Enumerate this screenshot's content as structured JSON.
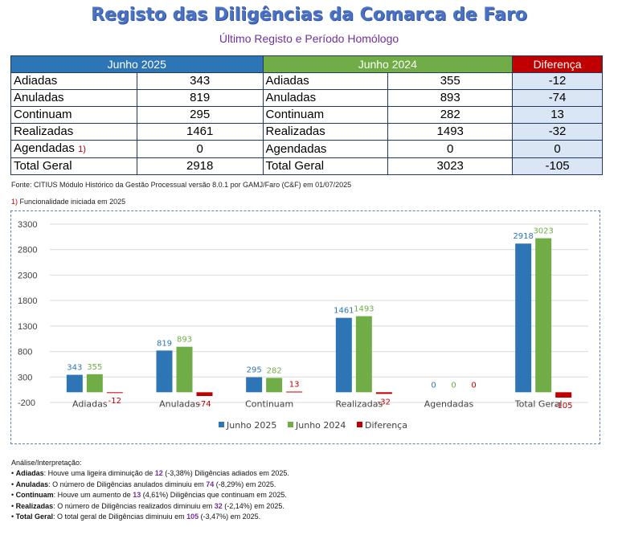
{
  "header": {
    "title": "Registo das Diligências da Comarca de Faro",
    "subtitle": "Último Registo e Período Homólogo"
  },
  "table": {
    "col_2025": "Junho 2025",
    "col_2024": "Junho 2024",
    "col_diff": "Diferença",
    "rows": [
      {
        "label": "Adiadas",
        "v2025": "343",
        "label2": "Adiadas",
        "v2024": "355",
        "diff": "-12"
      },
      {
        "label": "Anuladas",
        "v2025": "819",
        "label2": "Anuladas",
        "v2024": "893",
        "diff": "-74"
      },
      {
        "label": "Continuam",
        "v2025": "295",
        "label2": "Continuam",
        "v2024": "282",
        "diff": "13"
      },
      {
        "label": "Realizadas",
        "v2025": "1461",
        "label2": "Realizadas",
        "v2024": "1493",
        "diff": "-32"
      },
      {
        "label": "Agendadas",
        "sup": "1)",
        "v2025": "0",
        "label2": "Agendadas",
        "v2024": "0",
        "diff": "0"
      },
      {
        "label": "Total Geral",
        "v2025": "2918",
        "label2": "Total Geral",
        "v2024": "3023",
        "diff": "-105"
      }
    ]
  },
  "fonte": "Fonte: CITIUS Módulo Histórico da Gestão Processual versão 8.0.1 por GAMJ/Faro (C&F) em 01/07/2025",
  "note": {
    "marker": "1)",
    "text": " Funcionalidade iniciada em 2025"
  },
  "chart_data": {
    "type": "bar",
    "categories": [
      "Adiadas",
      "Anuladas",
      "Continuam",
      "Realizadas",
      "Agendadas",
      "Total Geral"
    ],
    "series": [
      {
        "name": "Junho 2025",
        "color": "#2e75b6",
        "values": [
          343,
          819,
          295,
          1461,
          0,
          2918
        ]
      },
      {
        "name": "Junho 2024",
        "color": "#70ad47",
        "values": [
          355,
          893,
          282,
          1493,
          0,
          3023
        ]
      },
      {
        "name": "Diferença",
        "color": "#c00000",
        "values": [
          -12,
          -74,
          13,
          -32,
          0,
          -105
        ]
      }
    ],
    "ylim": [
      -200,
      3300
    ],
    "yticks": [
      -200,
      300,
      800,
      1300,
      1800,
      2300,
      2800,
      3300
    ],
    "grid": true,
    "legend": "bottom"
  },
  "analysis": {
    "title": "Análise/Interpretação:",
    "items": [
      {
        "term": "Adiadas",
        "pre": ": Houve uma ligeira diminuição de ",
        "num": "12",
        "post": " (-3,38%) Diligências adiados em 2025."
      },
      {
        "term": "Anuladas",
        "pre": ": O número de Diligências anulados diminuiu em ",
        "num": "74",
        "post": " (-8,29%) em 2025."
      },
      {
        "term": "Continuam",
        "pre": ": Houve um aumento de ",
        "num": "13",
        "post": " (4,61%) Diligências que continuam em 2025."
      },
      {
        "term": "Realizadas",
        "pre": ": O número de Diligências realizados diminuiu em ",
        "num": "32",
        "post": " (-2,14%) em 2025."
      },
      {
        "term": "Total Geral",
        "pre": ": O total geral de Diligências diminuiu em ",
        "num": "105",
        "post": " (-3,47%) em 2025."
      }
    ]
  }
}
